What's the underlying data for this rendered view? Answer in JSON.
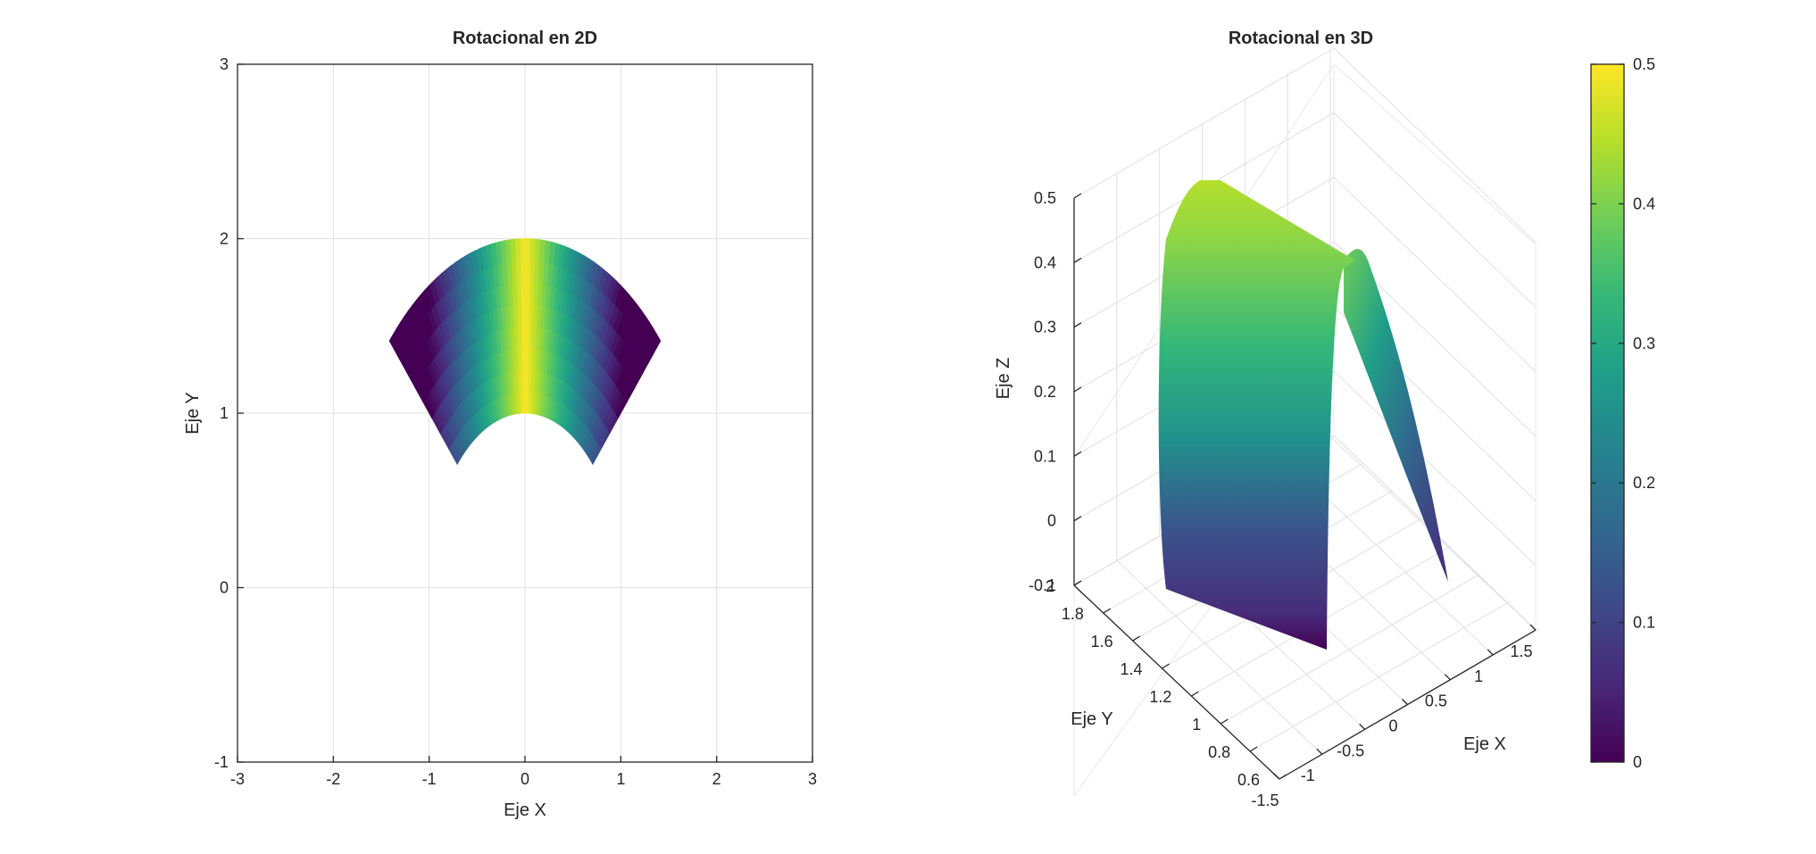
{
  "chart_data": [
    {
      "type": "surface-2d",
      "title": "Rotacional en 2D",
      "xlabel": "Eje X",
      "ylabel": "Eje Y",
      "xlim": [
        -3,
        3
      ],
      "ylim": [
        -1,
        3
      ],
      "xticks": [
        "-3",
        "-2",
        "-1",
        "0",
        "1",
        "2",
        "3"
      ],
      "yticks": [
        "-1",
        "0",
        "1",
        "2",
        "3"
      ],
      "grid": true,
      "colormap": "viridis",
      "domain": {
        "r_range": [
          1,
          2
        ],
        "theta_deg_range": [
          45,
          135
        ]
      },
      "color_field": "0.5 - |x| / 2 (approx.)"
    },
    {
      "type": "surface-3d",
      "title": "Rotacional en 3D",
      "xlabel": "Eje X",
      "ylabel": "Eje Y",
      "zlabel": "Eje Z",
      "xlim": [
        -1.5,
        1.5
      ],
      "ylim": [
        0.6,
        2
      ],
      "zlim": [
        -0.1,
        0.5
      ],
      "xticks": [
        "-1.5",
        "-1",
        "-0.5",
        "0",
        "0.5",
        "1",
        "1.5"
      ],
      "yticks": [
        "0.6",
        "0.8",
        "1",
        "1.2",
        "1.4",
        "1.6",
        "1.8",
        "2"
      ],
      "zticks": [
        "-0.1",
        "0",
        "0.1",
        "0.2",
        "0.3",
        "0.4",
        "0.5"
      ],
      "grid": true,
      "colormap": "viridis",
      "colorbar": {
        "range": [
          0,
          0.5
        ],
        "ticks": [
          "0",
          "0.1",
          "0.2",
          "0.3",
          "0.4",
          "0.5"
        ]
      }
    }
  ],
  "colors": {
    "viridis": [
      "#440154",
      "#482878",
      "#3e4989",
      "#31688e",
      "#26828e",
      "#1f9e89",
      "#35b779",
      "#6ece58",
      "#b5de2b",
      "#fde725"
    ],
    "axis": "#262626",
    "grid": "#e0e0e0"
  }
}
